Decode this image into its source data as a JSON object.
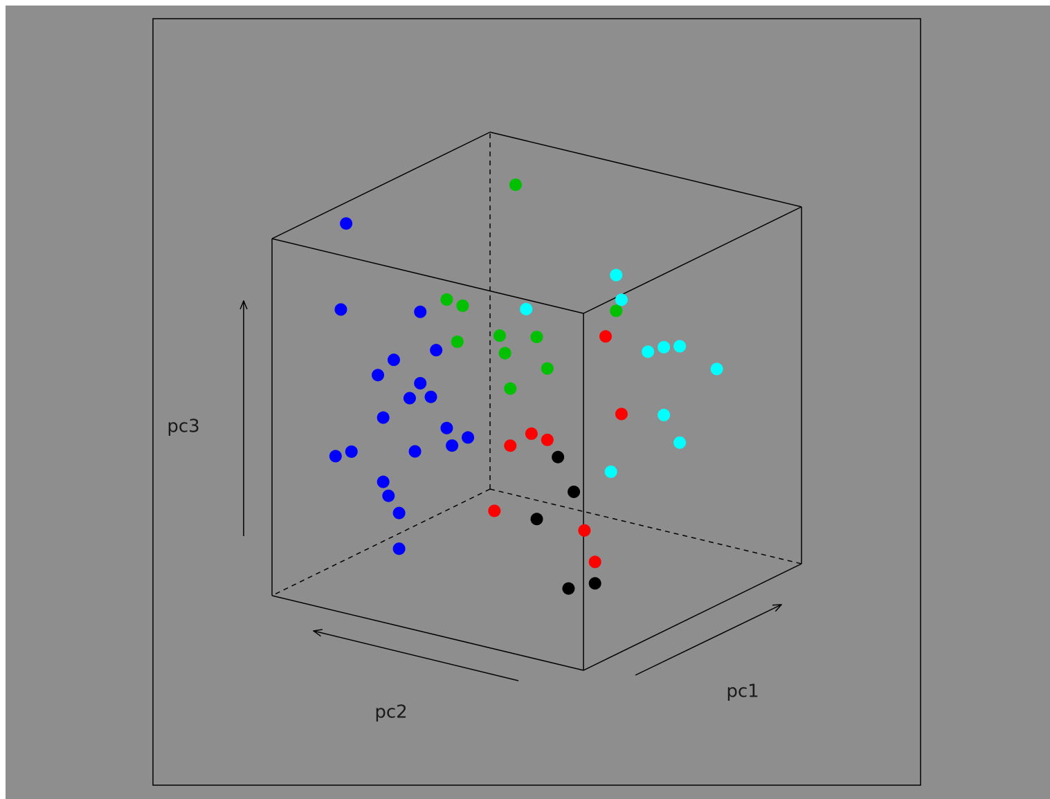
{
  "chart_data": {
    "type": "scatter3d",
    "x_label": "pc1",
    "y_label": "pc2",
    "z_label": "pc3",
    "xlim": [
      0,
      1
    ],
    "ylim": [
      0,
      1
    ],
    "zlim": [
      0,
      1
    ],
    "series": [
      {
        "color": "#0000ff",
        "pc1": [
          0.14,
          0.13,
          0.28,
          0.31,
          0.23,
          0.2,
          0.28,
          0.26,
          0.3,
          0.21,
          0.33,
          0.37,
          0.34,
          0.27,
          0.15,
          0.12,
          0.21,
          0.22,
          0.24,
          0.24
        ],
        "pc2": [
          0.86,
          0.87,
          0.72,
          0.69,
          0.77,
          0.8,
          0.72,
          0.74,
          0.7,
          0.79,
          0.67,
          0.63,
          0.66,
          0.73,
          0.85,
          0.88,
          0.79,
          0.78,
          0.76,
          0.76
        ],
        "pc3": [
          1.03,
          0.79,
          0.77,
          0.66,
          0.64,
          0.6,
          0.57,
          0.53,
          0.53,
          0.48,
          0.44,
          0.41,
          0.39,
          0.38,
          0.39,
          0.38,
          0.3,
          0.26,
          0.21,
          0.11
        ]
      },
      {
        "color": "#00c000",
        "pc1": [
          0.46,
          0.33,
          0.36,
          0.35,
          0.43,
          0.5,
          0.44,
          0.52,
          0.45,
          0.65
        ],
        "pc2": [
          0.54,
          0.67,
          0.64,
          0.65,
          0.57,
          0.5,
          0.56,
          0.48,
          0.55,
          0.35
        ],
        "pc3": [
          1.11,
          0.8,
          0.78,
          0.68,
          0.69,
          0.68,
          0.64,
          0.59,
          0.54,
          0.74
        ]
      },
      {
        "color": "#00ffff",
        "pc1": [
          0.65,
          0.66,
          0.48,
          0.71,
          0.74,
          0.77,
          0.84,
          0.74,
          0.77,
          0.64
        ],
        "pc2": [
          0.35,
          0.34,
          0.52,
          0.29,
          0.26,
          0.23,
          0.16,
          0.26,
          0.23,
          0.36
        ],
        "pc3": [
          0.84,
          0.77,
          0.76,
          0.62,
          0.63,
          0.63,
          0.56,
          0.44,
          0.36,
          0.29
        ]
      },
      {
        "color": "#ff0000",
        "pc1": [
          0.63,
          0.66,
          0.49,
          0.52,
          0.45,
          0.42,
          0.59,
          0.61
        ],
        "pc2": [
          0.37,
          0.34,
          0.51,
          0.48,
          0.55,
          0.58,
          0.41,
          0.39
        ],
        "pc3": [
          0.67,
          0.45,
          0.41,
          0.39,
          0.38,
          0.2,
          0.13,
          0.04
        ]
      },
      {
        "color": "#000000",
        "pc1": [
          0.54,
          0.57,
          0.5,
          0.61,
          0.56
        ],
        "pc2": [
          0.46,
          0.43,
          0.5,
          0.39,
          0.44
        ],
        "pc3": [
          0.34,
          0.24,
          0.17,
          -0.02,
          -0.03
        ]
      }
    ]
  }
}
